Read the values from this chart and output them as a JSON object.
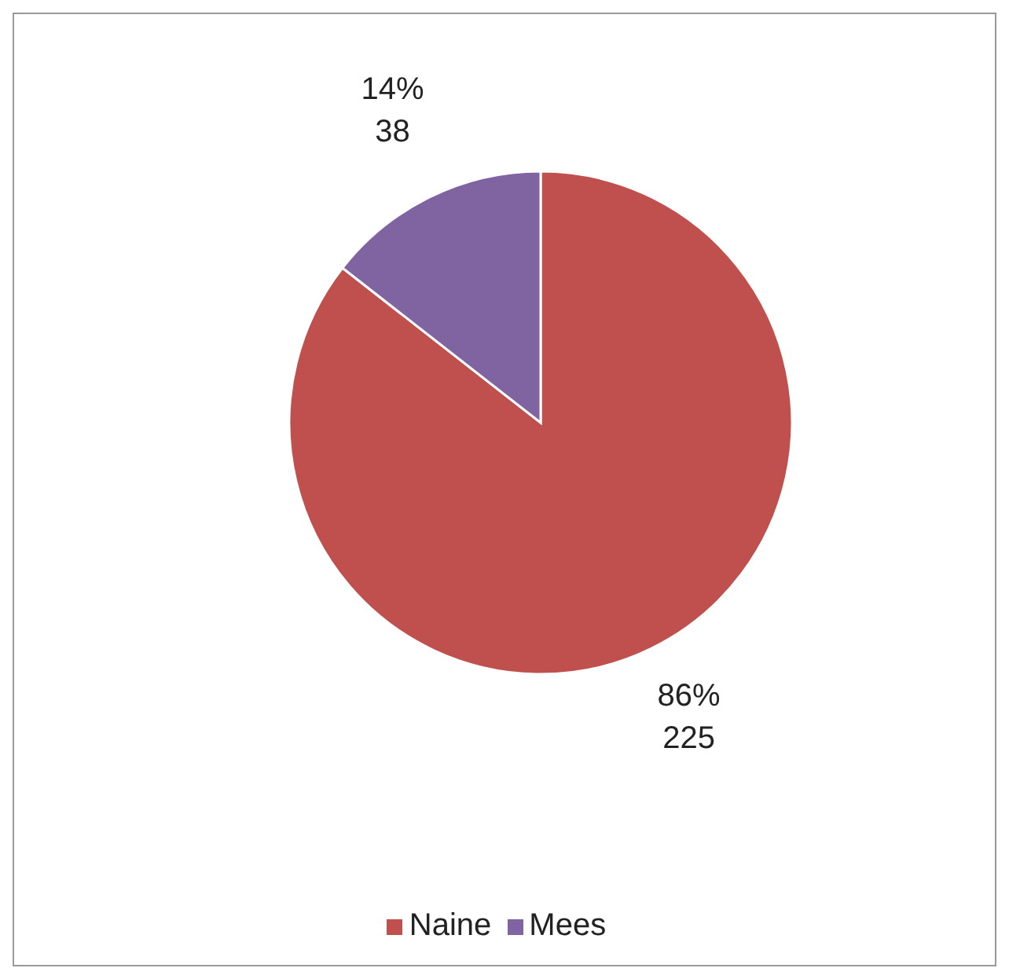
{
  "chart_data": {
    "type": "pie",
    "categories": [
      "Naine",
      "Mees"
    ],
    "values": [
      225,
      38
    ],
    "colors": [
      "#c0504d",
      "#8064a2"
    ],
    "value_labels": [
      "86%\n225",
      "14%\n38"
    ],
    "legend": "bottom"
  }
}
